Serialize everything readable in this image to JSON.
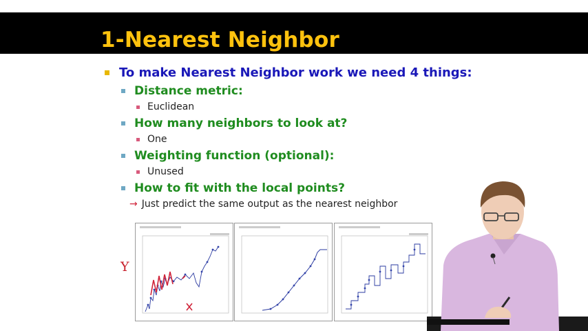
{
  "slide": {
    "title": "1-Nearest Neighbor",
    "main_point": "To make Nearest Neighbor work we need 4 things:",
    "items": [
      {
        "heading": "Distance metric:",
        "detail": "Euclidean"
      },
      {
        "heading": "How many neighbors to look at?",
        "detail": "One"
      },
      {
        "heading": "Weighting function (optional):",
        "detail": "Unused"
      },
      {
        "heading": "How to fit with the local points?",
        "detail": "Just predict the same output as the nearest neighbor"
      }
    ]
  },
  "annotations": {
    "y_label": "Y",
    "x_mark": "×",
    "arrow": "→"
  },
  "colors": {
    "title": "#ffc20e",
    "main_point": "#1a18b8",
    "headings": "#1f8c1f",
    "ink": "#c8202c"
  }
}
